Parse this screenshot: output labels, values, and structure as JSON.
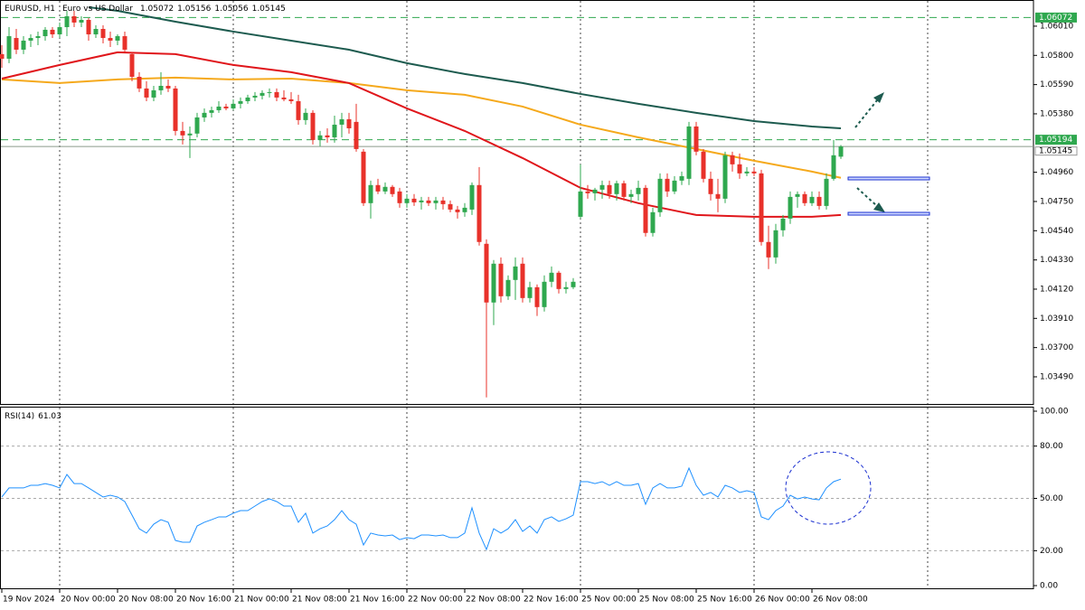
{
  "chart_data": [
    {
      "type": "candlestick",
      "title": "EURUSD, H1",
      "subtitle": "Euro vs US Dollar",
      "up_color": "#2fa84f",
      "down_color": "#e8312a",
      "categories": [
        "19 Nov 2024",
        null,
        null,
        null,
        null,
        null,
        null,
        null,
        "20 Nov 00:00",
        null,
        null,
        null,
        null,
        null,
        null,
        null,
        "20 Nov 08:00",
        null,
        null,
        null,
        null,
        null,
        null,
        null,
        "20 Nov 16:00",
        null,
        null,
        null,
        null,
        null,
        null,
        null,
        "21 Nov 00:00",
        null,
        null,
        null,
        null,
        null,
        null,
        null,
        "21 Nov 08:00",
        null,
        null,
        null,
        null,
        null,
        null,
        null,
        "21 Nov 16:00",
        null,
        null,
        null,
        null,
        null,
        null,
        null,
        "22 Nov 00:00",
        null,
        null,
        null,
        null,
        null,
        null,
        null,
        "22 Nov 08:00",
        null,
        null,
        null,
        null,
        null,
        null,
        null,
        "22 Nov 16:00",
        null,
        null,
        null,
        null,
        null,
        null,
        null,
        "25 Nov 00:00",
        null,
        null,
        null,
        null,
        null,
        null,
        null,
        "25 Nov 08:00",
        null,
        null,
        null,
        null,
        null,
        null,
        null,
        "25 Nov 16:00",
        null,
        null,
        null,
        null,
        null,
        null,
        null,
        "26 Nov 00:00",
        null,
        null,
        null,
        null,
        null,
        null,
        null,
        "26 Nov 08:00",
        null,
        null,
        null,
        null
      ],
      "open": [
        1.05809,
        1.05776,
        1.05925,
        1.05841,
        1.05906,
        1.05925,
        1.05938,
        1.05984,
        1.05951,
        1.06003,
        1.06081,
        1.06036,
        1.06055,
        1.05951,
        1.0599,
        1.05925,
        1.05906,
        1.05938,
        1.05809,
        1.05646,
        1.05562,
        1.05497,
        1.05549,
        1.05581,
        1.05562,
        1.05257,
        1.05225,
        1.05238,
        1.05354,
        1.05387,
        1.05406,
        1.05432,
        1.05419,
        1.05452,
        1.05471,
        1.05497,
        1.0551,
        1.0553,
        1.05536,
        1.05497,
        1.05484,
        1.05471,
        1.05335,
        1.05387,
        1.05192,
        1.05225,
        1.05211,
        1.05302,
        1.05341,
        1.05322,
        1.05108,
        1.04738,
        1.04868,
        1.04822,
        1.04855,
        1.04822,
        1.04738,
        1.0477,
        1.04744,
        1.04757,
        1.04738,
        1.04757,
        1.04731,
        1.04692,
        1.04673,
        1.04692,
        1.04868,
        1.04446,
        1.04024,
        1.04303,
        1.04069,
        1.04186,
        1.04303,
        1.04056,
        1.04134,
        1.03991,
        1.04173,
        1.04238,
        1.04121,
        1.04134,
        1.0464,
        1.04822,
        1.04809,
        1.04835,
        1.04868,
        1.04803,
        1.04881,
        1.04783,
        1.04803,
        1.04848,
        1.04524,
        1.04673,
        1.04913,
        1.04822,
        1.049,
        1.04913,
        1.05289,
        1.05108,
        1.04913,
        1.04803,
        1.0477,
        1.05082,
        1.05017,
        1.04952,
        1.04965,
        1.04952,
        1.04459,
        1.04348,
        1.04543,
        1.04627,
        1.04783,
        1.04803,
        1.04738,
        1.04783,
        1.04718,
        1.04913,
        1.05072
      ],
      "high": [
        1.05873,
        1.06003,
        1.0599,
        1.05938,
        1.05951,
        1.05971,
        1.06003,
        1.06003,
        1.06036,
        1.0612,
        1.0612,
        1.06081,
        1.06068,
        1.06016,
        1.06016,
        1.05971,
        1.05951,
        1.05971,
        1.05822,
        1.05679,
        1.05614,
        1.05581,
        1.05679,
        1.05627,
        1.05581,
        1.05322,
        1.05289,
        1.05387,
        1.05419,
        1.05432,
        1.05471,
        1.05452,
        1.05484,
        1.05497,
        1.05517,
        1.05536,
        1.05549,
        1.05562,
        1.05562,
        1.05549,
        1.05536,
        1.05517,
        1.05419,
        1.05406,
        1.05257,
        1.05276,
        1.05367,
        1.05387,
        1.05387,
        1.05452,
        1.05127,
        1.049,
        1.04913,
        1.04887,
        1.04868,
        1.04848,
        1.04803,
        1.04803,
        1.04783,
        1.04783,
        1.04783,
        1.04783,
        1.04757,
        1.04718,
        1.04738,
        1.04887,
        1.04997,
        1.04478,
        1.04329,
        1.04348,
        1.04219,
        1.04348,
        1.04348,
        1.04173,
        1.04154,
        1.04219,
        1.04283,
        1.04251,
        1.04173,
        1.04199,
        1.05017,
        1.04868,
        1.04848,
        1.049,
        1.049,
        1.049,
        1.049,
        1.04835,
        1.049,
        1.04868,
        1.04705,
        1.04952,
        1.04952,
        1.04932,
        1.04965,
        1.05322,
        1.05322,
        1.05127,
        1.04965,
        1.04913,
        1.05108,
        1.05108,
        1.05095,
        1.04997,
        1.04997,
        1.04978,
        1.04576,
        1.04589,
        1.04653,
        1.04822,
        1.04822,
        1.04822,
        1.04822,
        1.04822,
        1.04952,
        1.05192,
        1.05156
      ],
      "low": [
        1.05711,
        1.05744,
        1.05809,
        1.05809,
        1.0586,
        1.05873,
        1.05906,
        1.05925,
        1.05925,
        1.05938,
        1.06003,
        1.06003,
        1.05906,
        1.05925,
        1.05886,
        1.0586,
        1.05873,
        1.05822,
        1.05614,
        1.05536,
        1.05471,
        1.05471,
        1.05517,
        1.05536,
        1.05225,
        1.0516,
        1.05062,
        1.05211,
        1.05322,
        1.05354,
        1.05387,
        1.05406,
        1.05406,
        1.05419,
        1.05452,
        1.05471,
        1.05484,
        1.05497,
        1.05471,
        1.05471,
        1.05452,
        1.05302,
        1.05302,
        1.0516,
        1.05147,
        1.05173,
        1.05173,
        1.05211,
        1.05238,
        1.05108,
        1.04718,
        1.04627,
        1.04803,
        1.04803,
        1.04783,
        1.04705,
        1.04705,
        1.04718,
        1.04692,
        1.04718,
        1.04692,
        1.04692,
        1.04673,
        1.04627,
        1.0464,
        1.04653,
        1.04433,
        1.03342,
        1.03862,
        1.04024,
        1.04043,
        1.04043,
        1.04024,
        1.04024,
        1.03927,
        1.03959,
        1.04134,
        1.04089,
        1.04089,
        1.04121,
        1.04627,
        1.0477,
        1.04757,
        1.0477,
        1.0477,
        1.04757,
        1.04757,
        1.04738,
        1.04757,
        1.04498,
        1.04498,
        1.0464,
        1.04783,
        1.04803,
        1.04868,
        1.04868,
        1.05082,
        1.04887,
        1.04757,
        1.04673,
        1.04738,
        1.04965,
        1.04913,
        1.04932,
        1.04932,
        1.04433,
        1.04264,
        1.04303,
        1.04498,
        1.04589,
        1.04705,
        1.04718,
        1.04718,
        1.04692,
        1.04692,
        1.049,
        1.05056
      ],
      "close": [
        1.05776,
        1.05938,
        1.05841,
        1.05906,
        1.05925,
        1.05938,
        1.05984,
        1.05951,
        1.06003,
        1.06081,
        1.06036,
        1.06055,
        1.05951,
        1.0599,
        1.05925,
        1.05906,
        1.05938,
        1.05841,
        1.05646,
        1.05562,
        1.05497,
        1.05549,
        1.05581,
        1.05562,
        1.05257,
        1.05225,
        1.05238,
        1.05354,
        1.05387,
        1.05406,
        1.05432,
        1.05419,
        1.05452,
        1.05471,
        1.05497,
        1.0551,
        1.0553,
        1.05536,
        1.05497,
        1.05484,
        1.05471,
        1.05335,
        1.05387,
        1.05192,
        1.05225,
        1.05211,
        1.05302,
        1.05341,
        1.05276,
        1.05127,
        1.04738,
        1.04868,
        1.04822,
        1.04855,
        1.04803,
        1.04738,
        1.0477,
        1.04744,
        1.04757,
        1.04738,
        1.04757,
        1.04731,
        1.04692,
        1.04673,
        1.04705,
        1.04868,
        1.04459,
        1.04024,
        1.04303,
        1.04069,
        1.04186,
        1.04283,
        1.04056,
        1.04134,
        1.03991,
        1.04173,
        1.04238,
        1.04121,
        1.04134,
        1.04173,
        1.04822,
        1.04809,
        1.04835,
        1.04868,
        1.04803,
        1.04881,
        1.04783,
        1.04803,
        1.04848,
        1.04524,
        1.04673,
        1.04913,
        1.04822,
        1.049,
        1.04932,
        1.05289,
        1.05108,
        1.04913,
        1.04803,
        1.0477,
        1.05082,
        1.05017,
        1.04952,
        1.04965,
        1.04952,
        1.04459,
        1.04348,
        1.04543,
        1.04627,
        1.04783,
        1.04803,
        1.04738,
        1.04783,
        1.04718,
        1.04913,
        1.05082,
        1.05145
      ],
      "lines": [
        {
          "color": "#1d5b4f",
          "x": [
            12,
            16,
            24,
            32,
            40,
            48,
            56,
            64,
            72,
            80,
            88,
            96,
            104,
            112,
            116
          ],
          "values": [
            1.06146,
            1.0612,
            1.06042,
            1.05971,
            1.05906,
            1.05841,
            1.05744,
            1.05666,
            1.05601,
            1.05523,
            1.05452,
            1.05387,
            1.05328,
            1.05289,
            1.05276
          ]
        },
        {
          "color": "#f5a91c",
          "x": [
            0,
            8,
            16,
            24,
            32,
            40,
            48,
            56,
            64,
            72,
            80,
            88,
            96,
            104,
            112,
            116
          ],
          "values": [
            1.05627,
            1.05601,
            1.05627,
            1.0564,
            1.05627,
            1.05633,
            1.05601,
            1.05549,
            1.05517,
            1.05432,
            1.05302,
            1.05211,
            1.05127,
            1.05043,
            1.04965,
            1.0492
          ]
        },
        {
          "color": "#e0161b",
          "x": [
            0,
            8,
            16,
            24,
            32,
            40,
            48,
            56,
            64,
            72,
            80,
            88,
            96,
            104,
            112,
            116
          ],
          "values": [
            1.05633,
            1.05731,
            1.05822,
            1.05809,
            1.05731,
            1.05679,
            1.05601,
            1.05419,
            1.05257,
            1.05062,
            1.04848,
            1.04738,
            1.04653,
            1.0464,
            1.0464,
            1.04653
          ]
        }
      ],
      "levels": [
        1.06072,
        1.05194
      ],
      "level_color": "#2fa84f",
      "ylim": [
        1.03295,
        1.06172
      ],
      "yticks": [
        {
          "value": 1.0601,
          "label": "1.06010"
        },
        {
          "value": 1.058,
          "label": "1.05800"
        },
        {
          "value": 1.0559,
          "label": "1.05590"
        },
        {
          "value": 1.0538,
          "label": "1.05380"
        },
        {
          "value": 1.0496,
          "label": "1.04960"
        },
        {
          "value": 1.0475,
          "label": "1.04750"
        },
        {
          "value": 1.0454,
          "label": "1.04540"
        },
        {
          "value": 1.0433,
          "label": "1.04330"
        },
        {
          "value": 1.0412,
          "label": "1.04120"
        },
        {
          "value": 1.0391,
          "label": "1.03910"
        },
        {
          "value": 1.037,
          "label": "1.03700"
        },
        {
          "value": 1.0349,
          "label": "1.03490"
        }
      ]
    },
    {
      "type": "line",
      "title": "RSI(14)",
      "series": [
        {
          "color": "#1e90ff",
          "values": [
            50.8,
            56.0,
            56.0,
            56.0,
            57.5,
            57.5,
            58.5,
            57.5,
            56.0,
            63.7,
            58.5,
            58.5,
            56.0,
            53.4,
            50.8,
            51.8,
            50.8,
            48.2,
            40.4,
            32.6,
            30.1,
            35.2,
            37.8,
            36.3,
            25.9,
            24.9,
            24.9,
            34.2,
            36.3,
            37.8,
            39.4,
            39.4,
            41.5,
            43.0,
            43.0,
            45.6,
            48.2,
            49.7,
            48.2,
            45.6,
            45.6,
            36.3,
            41.5,
            30.1,
            32.6,
            34.2,
            37.8,
            43.0,
            37.8,
            35.2,
            23.3,
            30.1,
            29.0,
            28.5,
            29.0,
            26.4,
            27.5,
            26.9,
            29.0,
            29.0,
            28.5,
            29.0,
            27.5,
            27.5,
            30.1,
            44.6,
            30.1,
            20.7,
            32.6,
            30.1,
            32.6,
            37.8,
            31.1,
            34.2,
            30.1,
            37.8,
            39.4,
            36.8,
            38.3,
            40.4,
            59.6,
            59.6,
            58.5,
            59.6,
            57.5,
            59.6,
            57.5,
            57.5,
            58.5,
            46.6,
            56.0,
            58.5,
            56.0,
            56.0,
            57.0,
            67.4,
            57.5,
            51.8,
            53.4,
            50.8,
            57.5,
            56.0,
            53.4,
            54.4,
            53.4,
            39.4,
            37.8,
            43.0,
            45.6,
            51.8,
            49.7,
            50.8,
            49.7,
            49.2,
            56.0,
            59.6,
            61.03
          ]
        }
      ],
      "levels": [
        20,
        50,
        80
      ],
      "ylim": [
        0,
        100
      ],
      "yticks": [
        {
          "value": 100,
          "label": "100.00"
        },
        {
          "value": 80,
          "label": "80.00"
        },
        {
          "value": 50,
          "label": "50.00"
        },
        {
          "value": 20,
          "label": "20.00"
        },
        {
          "value": 0,
          "label": "0.00"
        }
      ]
    }
  ]
}
